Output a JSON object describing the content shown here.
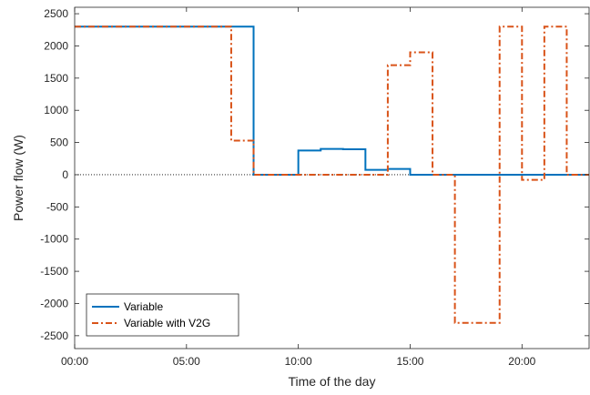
{
  "chart_data": {
    "type": "line",
    "title": "",
    "xlabel": "Time of the day",
    "ylabel": "Power flow (W)",
    "x_unit": "hours",
    "xlim": [
      0,
      23
    ],
    "ylim": [
      -2700,
      2600
    ],
    "x_ticks": [
      {
        "value": 0,
        "label": "00:00"
      },
      {
        "value": 5,
        "label": "05:00"
      },
      {
        "value": 10,
        "label": "10:00"
      },
      {
        "value": 15,
        "label": "15:00"
      },
      {
        "value": 20,
        "label": "20:00"
      }
    ],
    "y_ticks": [
      2500,
      2000,
      1500,
      1000,
      500,
      0,
      -500,
      -1000,
      -1500,
      -2000,
      -2500
    ],
    "zero_line": true,
    "grid": false,
    "legend_position": "bottom-left",
    "series": [
      {
        "name": "Variable",
        "color": "#0072bd",
        "style": "solid",
        "step": "post",
        "points": [
          [
            0,
            2300
          ],
          [
            8,
            0
          ],
          [
            10,
            375
          ],
          [
            11,
            400
          ],
          [
            12,
            395
          ],
          [
            13,
            75
          ],
          [
            14,
            90
          ],
          [
            15,
            0
          ],
          [
            23,
            0
          ]
        ]
      },
      {
        "name": "Variable with V2G",
        "color": "#d95319",
        "style": "dashdot",
        "step": "post",
        "points": [
          [
            0,
            2300
          ],
          [
            7,
            530
          ],
          [
            8,
            0
          ],
          [
            14,
            1700
          ],
          [
            15,
            1900
          ],
          [
            16,
            0
          ],
          [
            17,
            -2300
          ],
          [
            19,
            2300
          ],
          [
            20,
            -80
          ],
          [
            21,
            2300
          ],
          [
            22,
            0
          ],
          [
            23,
            0
          ]
        ]
      }
    ]
  }
}
